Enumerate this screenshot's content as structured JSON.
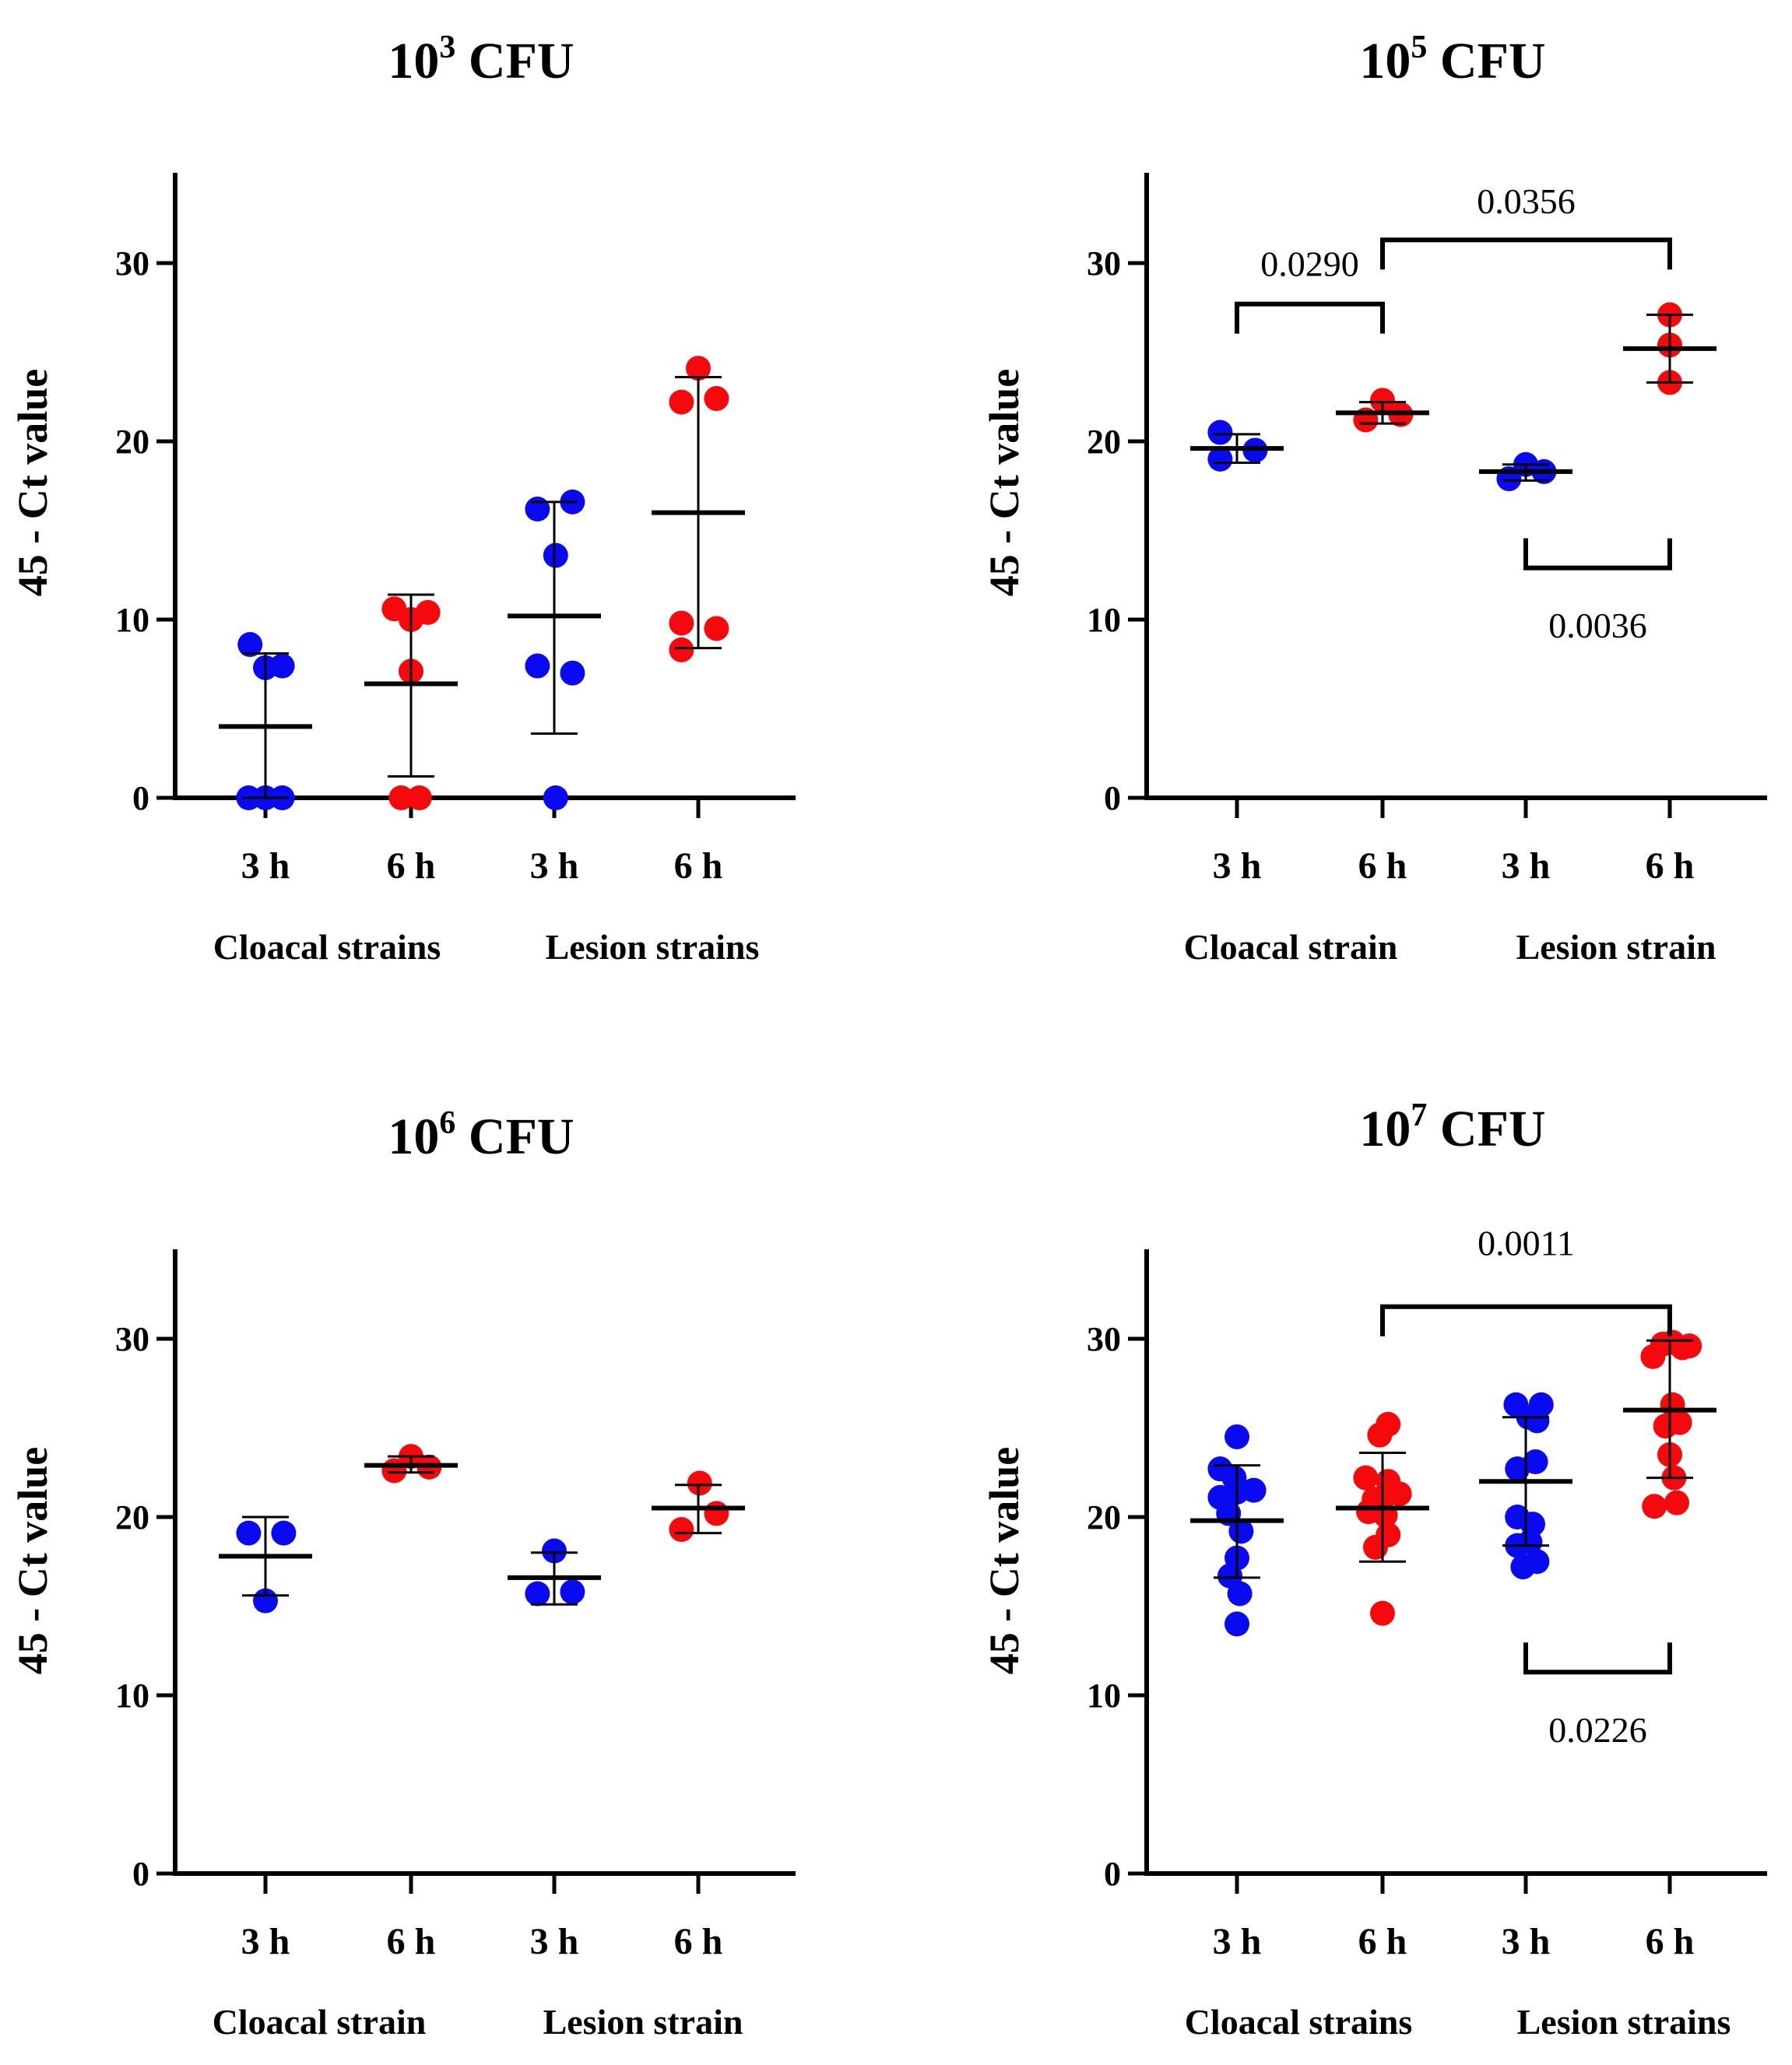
{
  "colors": {
    "h3": "#0a0af0",
    "h6": "#f5090c",
    "axis": "#000000"
  },
  "chart_data": [
    {
      "type": "scatter",
      "title": "10^3 CFU",
      "title_base": "10",
      "title_exp": "3",
      "title_rest": " CFU",
      "ylabel": "45 - Ct value",
      "ylim": [
        0,
        35
      ],
      "yticks": [
        0,
        10,
        20,
        30
      ],
      "ytick_labels": [
        "0",
        "10",
        "20",
        "30"
      ],
      "categories": [
        "3 h",
        "6 h",
        "3 h",
        "6 h"
      ],
      "groups": [
        "Cloacal strains",
        "Lesion strains"
      ],
      "series": [
        {
          "name": "Cloacal 3 h",
          "color_key": "h3",
          "mean": 4.0,
          "sd_low": 0.0,
          "sd_high": 8.1,
          "points": [
            [
              -0.22,
              8.6
            ],
            [
              0.0,
              7.3
            ],
            [
              0.24,
              7.4
            ],
            [
              -0.24,
              0.0
            ],
            [
              0.0,
              0.0
            ],
            [
              0.24,
              0.0
            ]
          ]
        },
        {
          "name": "Cloacal 6 h",
          "color_key": "h6",
          "mean": 6.4,
          "sd_low": 1.2,
          "sd_high": 11.4,
          "points": [
            [
              -0.24,
              10.6
            ],
            [
              0.0,
              10.0
            ],
            [
              0.24,
              10.4
            ],
            [
              0.0,
              7.1
            ],
            [
              -0.14,
              0.0
            ],
            [
              0.12,
              0.0
            ]
          ]
        },
        {
          "name": "Lesion 3 h",
          "color_key": "h3",
          "mean": 10.2,
          "sd_low": 3.6,
          "sd_high": 16.6,
          "points": [
            [
              -0.24,
              16.2
            ],
            [
              0.26,
              16.6
            ],
            [
              0.02,
              13.6
            ],
            [
              -0.24,
              7.4
            ],
            [
              0.26,
              7.0
            ],
            [
              0.02,
              0.0
            ]
          ]
        },
        {
          "name": "Lesion 6 h",
          "color_key": "h6",
          "mean": 16.0,
          "sd_low": 8.4,
          "sd_high": 23.6,
          "points": [
            [
              0.0,
              24.1
            ],
            [
              -0.24,
              22.2
            ],
            [
              0.26,
              22.4
            ],
            [
              -0.24,
              9.8
            ],
            [
              0.26,
              9.5
            ],
            [
              -0.24,
              8.3
            ]
          ]
        }
      ],
      "comparisons": []
    },
    {
      "type": "scatter",
      "title": "10^5 CFU",
      "title_base": "10",
      "title_exp": "5",
      "title_rest": " CFU",
      "ylabel": "45 - Ct value",
      "ylim": [
        0,
        35
      ],
      "yticks": [
        0,
        10,
        20,
        30
      ],
      "ytick_labels": [
        "0",
        "10",
        "20",
        "30"
      ],
      "categories": [
        "3 h",
        "6 h",
        "3 h",
        "6 h"
      ],
      "groups": [
        "Cloacal strain",
        "Lesion strain"
      ],
      "series": [
        {
          "name": "Cloacal 3 h",
          "color_key": "h3",
          "mean": 19.6,
          "sd_low": 18.8,
          "sd_high": 20.4,
          "points": [
            [
              -0.24,
              20.5
            ],
            [
              -0.24,
              19.0
            ],
            [
              0.26,
              19.5
            ]
          ]
        },
        {
          "name": "Cloacal 6 h",
          "color_key": "h6",
          "mean": 21.6,
          "sd_low": 21.0,
          "sd_high": 22.2,
          "points": [
            [
              -0.24,
              21.2
            ],
            [
              0.0,
              22.3
            ],
            [
              0.26,
              21.5
            ]
          ]
        },
        {
          "name": "Lesion 3 h",
          "color_key": "h3",
          "mean": 18.3,
          "sd_low": 17.8,
          "sd_high": 18.7,
          "points": [
            [
              -0.24,
              17.9
            ],
            [
              0.0,
              18.7
            ],
            [
              0.26,
              18.3
            ]
          ]
        },
        {
          "name": "Lesion 6 h",
          "color_key": "h6",
          "mean": 25.2,
          "sd_low": 23.3,
          "sd_high": 27.1,
          "points": [
            [
              0.0,
              27.1
            ],
            [
              0.0,
              25.4
            ],
            [
              0.0,
              23.3
            ]
          ]
        }
      ],
      "comparisons": [
        {
          "from": 0,
          "to": 1,
          "y": 27.7,
          "direction": "up",
          "label": "0.0290",
          "label_y": 29.9
        },
        {
          "from": 1,
          "to": 3,
          "y": 31.3,
          "direction": "up",
          "label": "0.0356",
          "label_y": 33.4
        },
        {
          "from": 2,
          "to": 3,
          "y": 12.9,
          "direction": "down",
          "label": "0.0036",
          "label_y": 9.6
        }
      ]
    },
    {
      "type": "scatter",
      "title": "10^6 CFU",
      "title_base": "10",
      "title_exp": "6",
      "title_rest": " CFU",
      "ylabel": "45 - Ct value",
      "ylim": [
        0,
        35
      ],
      "yticks": [
        0,
        10,
        20,
        30
      ],
      "ytick_labels": [
        "0",
        "10",
        "20",
        "30"
      ],
      "categories": [
        "3 h",
        "6 h",
        "3 h",
        "6 h"
      ],
      "groups": [
        "Cloacal strain",
        "Lesion strain"
      ],
      "series": [
        {
          "name": "Cloacal 3 h",
          "color_key": "h3",
          "mean": 17.8,
          "sd_low": 15.6,
          "sd_high": 20.0,
          "points": [
            [
              -0.24,
              19.1
            ],
            [
              0.26,
              19.1
            ],
            [
              0.0,
              15.3
            ]
          ]
        },
        {
          "name": "Cloacal 6 h",
          "color_key": "h6",
          "mean": 22.9,
          "sd_low": 22.5,
          "sd_high": 23.4,
          "points": [
            [
              -0.24,
              22.6
            ],
            [
              0.0,
              23.4
            ],
            [
              0.26,
              22.8
            ]
          ]
        },
        {
          "name": "Lesion 3 h",
          "color_key": "h3",
          "mean": 16.6,
          "sd_low": 15.1,
          "sd_high": 18.0,
          "points": [
            [
              0.0,
              18.1
            ],
            [
              -0.24,
              15.7
            ],
            [
              0.26,
              15.8
            ]
          ]
        },
        {
          "name": "Lesion 6 h",
          "color_key": "h6",
          "mean": 20.5,
          "sd_low": 19.1,
          "sd_high": 21.8,
          "points": [
            [
              0.02,
              21.9
            ],
            [
              -0.24,
              19.3
            ],
            [
              0.26,
              20.2
            ]
          ]
        }
      ],
      "comparisons": []
    },
    {
      "type": "scatter",
      "title": "10^7 CFU",
      "title_base": "10",
      "title_exp": "7",
      "title_rest": " CFU",
      "ylabel": "45 - Ct value",
      "ylim": [
        0,
        35
      ],
      "yticks": [
        0,
        10,
        20,
        30
      ],
      "ytick_labels": [
        "0",
        "10",
        "20",
        "30"
      ],
      "categories": [
        "3 h",
        "6 h",
        "3 h",
        "6 h"
      ],
      "groups": [
        "Cloacal strains",
        "Lesion strains"
      ],
      "series": [
        {
          "name": "Cloacal 3 h",
          "color_key": "h3",
          "mean": 19.8,
          "sd_low": 16.6,
          "sd_high": 22.9,
          "points": [
            [
              0.0,
              24.5
            ],
            [
              -0.24,
              22.7
            ],
            [
              -0.04,
              22.2
            ],
            [
              -0.24,
              21.1
            ],
            [
              0.0,
              21.4
            ],
            [
              0.24,
              21.5
            ],
            [
              -0.12,
              20.2
            ],
            [
              0.06,
              19.2
            ],
            [
              0.0,
              17.7
            ],
            [
              -0.1,
              16.7
            ],
            [
              0.04,
              15.7
            ],
            [
              0.0,
              14.0
            ]
          ]
        },
        {
          "name": "Cloacal 6 h",
          "color_key": "h6",
          "mean": 20.5,
          "sd_low": 17.5,
          "sd_high": 23.6,
          "points": [
            [
              0.08,
              25.2
            ],
            [
              -0.04,
              24.6
            ],
            [
              -0.24,
              22.2
            ],
            [
              0.08,
              22.0
            ],
            [
              -0.12,
              21.0
            ],
            [
              0.04,
              21.2
            ],
            [
              0.24,
              21.3
            ],
            [
              -0.2,
              20.3
            ],
            [
              0.04,
              20.1
            ],
            [
              0.08,
              19.0
            ],
            [
              -0.1,
              18.3
            ],
            [
              0.0,
              14.6
            ]
          ]
        },
        {
          "name": "Lesion 3 h",
          "color_key": "h3",
          "mean": 22.0,
          "sd_low": 18.4,
          "sd_high": 25.6,
          "points": [
            [
              -0.14,
              26.3
            ],
            [
              0.22,
              26.3
            ],
            [
              0.04,
              25.6
            ],
            [
              0.16,
              25.4
            ],
            [
              0.14,
              23.1
            ],
            [
              -0.12,
              22.7
            ],
            [
              -0.12,
              20.0
            ],
            [
              0.1,
              19.6
            ],
            [
              0.06,
              18.6
            ],
            [
              -0.12,
              18.4
            ],
            [
              -0.04,
              17.2
            ],
            [
              0.16,
              17.5
            ]
          ]
        },
        {
          "name": "Lesion 6 h",
          "color_key": "h6",
          "mean": 26.0,
          "sd_low": 22.2,
          "sd_high": 29.9,
          "points": [
            [
              -0.24,
              29.0
            ],
            [
              -0.1,
              29.7
            ],
            [
              0.04,
              29.8
            ],
            [
              0.18,
              29.5
            ],
            [
              0.28,
              29.6
            ],
            [
              0.04,
              26.3
            ],
            [
              -0.06,
              25.1
            ],
            [
              0.14,
              25.3
            ],
            [
              0.0,
              23.5
            ],
            [
              0.06,
              22.2
            ],
            [
              -0.22,
              20.6
            ],
            [
              0.1,
              20.8
            ]
          ]
        }
      ],
      "comparisons": [
        {
          "from": 1,
          "to": 3,
          "y": 31.8,
          "direction": "up",
          "label": "0.0011",
          "label_y": 35.3
        },
        {
          "from": 2,
          "to": 3,
          "y": 11.3,
          "direction": "down",
          "label": "0.0226",
          "label_y": 8.0
        }
      ]
    }
  ]
}
